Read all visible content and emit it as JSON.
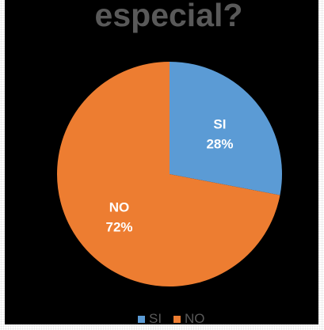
{
  "chart_data": {
    "type": "pie",
    "title": "especial?",
    "categories": [
      "SI",
      "NO"
    ],
    "values": [
      28,
      72
    ],
    "labels": [
      "28%",
      "72%"
    ],
    "colors": [
      "#5b9bd5",
      "#ed7d31"
    ],
    "legend": {
      "position": "bottom",
      "entries": [
        "SI",
        "NO"
      ]
    }
  }
}
